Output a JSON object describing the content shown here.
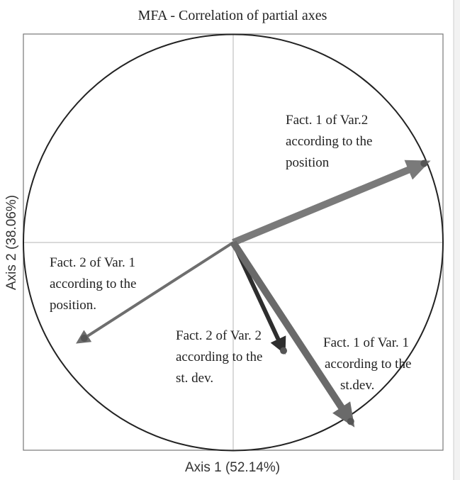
{
  "chart_data": {
    "type": "correlation-circle",
    "title": "MFA - Correlation of partial axes",
    "xlabel": "Axis 1 (52.14%)",
    "ylabel": "Axis 2 (38.06%)",
    "xlim": [
      -1,
      1
    ],
    "ylim": [
      -1,
      1
    ],
    "grid": false,
    "vectors": [
      {
        "lines": [
          "Fact. 1 of Var.2",
          "according to the",
          "position"
        ],
        "x": 0.91,
        "y": 0.38,
        "color": "#7a7a7a",
        "width": "thick"
      },
      {
        "lines": [
          "Fact. 2 of Var. 1",
          "according to the",
          "position."
        ],
        "x": -0.71,
        "y": -0.46,
        "color": "#6e6e6e",
        "width": "thin"
      },
      {
        "lines": [
          "Fact. 2 of Var. 2",
          "according to the",
          "st. dev."
        ],
        "x": 0.24,
        "y": -0.52,
        "color": "#2e2e2e",
        "width": "medium"
      },
      {
        "lines": [
          "Fact. 1 of Var. 1",
          "according to the",
          "st.dev."
        ],
        "x": 0.56,
        "y": -0.86,
        "color": "#6a6a6a",
        "width": "thick"
      }
    ]
  }
}
